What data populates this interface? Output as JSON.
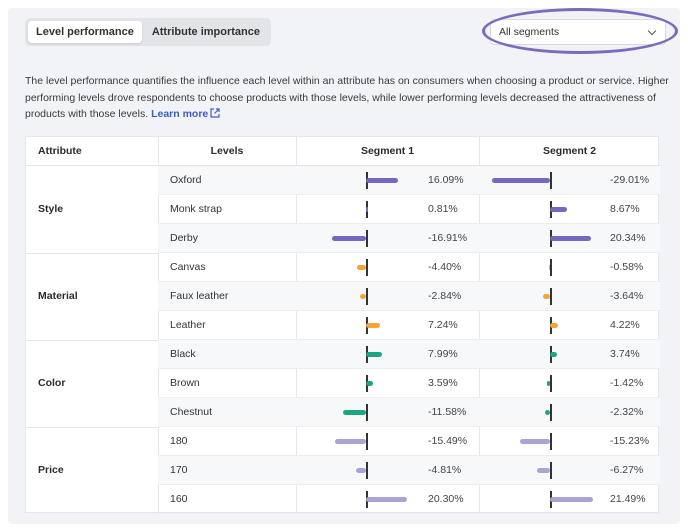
{
  "tabs": [
    "Level performance",
    "Attribute importance"
  ],
  "segment_select": {
    "value": "All segments"
  },
  "description": {
    "text": "The level performance quantifies the influence each level within an attribute has on consumers when choosing a product or service. Higher performing levels drove respondents to choose products with those levels, while lower performing levels decreased the attractiveness of products with those levels.",
    "link": "Learn more"
  },
  "table": {
    "headers": {
      "attribute": "Attribute",
      "levels": "Levels",
      "segment1": "Segment 1",
      "segment2": "Segment 2"
    },
    "groups": [
      {
        "attribute": "Style",
        "color": "#7667c0",
        "rows": [
          {
            "level": "Oxford",
            "s1": 16.09,
            "s1_label": "16.09%",
            "s2": -29.01,
            "s2_label": "-29.01%"
          },
          {
            "level": "Monk strap",
            "s1": 0.81,
            "s1_label": "0.81%",
            "s2": 8.67,
            "s2_label": "8.67%"
          },
          {
            "level": "Derby",
            "s1": -16.91,
            "s1_label": "-16.91%",
            "s2": 20.34,
            "s2_label": "20.34%"
          }
        ]
      },
      {
        "attribute": "Material",
        "color": "#f4a43a",
        "rows": [
          {
            "level": "Canvas",
            "s1": -4.4,
            "s1_label": "-4.40%",
            "s2": -0.58,
            "s2_label": "-0.58%"
          },
          {
            "level": "Faux leather",
            "s1": -2.84,
            "s1_label": "-2.84%",
            "s2": -3.64,
            "s2_label": "-3.64%"
          },
          {
            "level": "Leather",
            "s1": 7.24,
            "s1_label": "7.24%",
            "s2": 4.22,
            "s2_label": "4.22%"
          }
        ]
      },
      {
        "attribute": "Color",
        "color": "#1aa683",
        "rows": [
          {
            "level": "Black",
            "s1": 7.99,
            "s1_label": "7.99%",
            "s2": 3.74,
            "s2_label": "3.74%"
          },
          {
            "level": "Brown",
            "s1": 3.59,
            "s1_label": "3.59%",
            "s2": -1.42,
            "s2_label": "-1.42%"
          },
          {
            "level": "Chestnut",
            "s1": -11.58,
            "s1_label": "-11.58%",
            "s2": -2.32,
            "s2_label": "-2.32%"
          }
        ]
      },
      {
        "attribute": "Price",
        "color": "#a9a3d6",
        "rows": [
          {
            "level": "180",
            "s1": -15.49,
            "s1_label": "-15.49%",
            "s2": -15.23,
            "s2_label": "-15.23%"
          },
          {
            "level": "170",
            "s1": -4.81,
            "s1_label": "-4.81%",
            "s2": -6.27,
            "s2_label": "-6.27%"
          },
          {
            "level": "160",
            "s1": 20.3,
            "s1_label": "20.30%",
            "s2": 21.49,
            "s2_label": "21.49%"
          }
        ]
      }
    ]
  }
}
